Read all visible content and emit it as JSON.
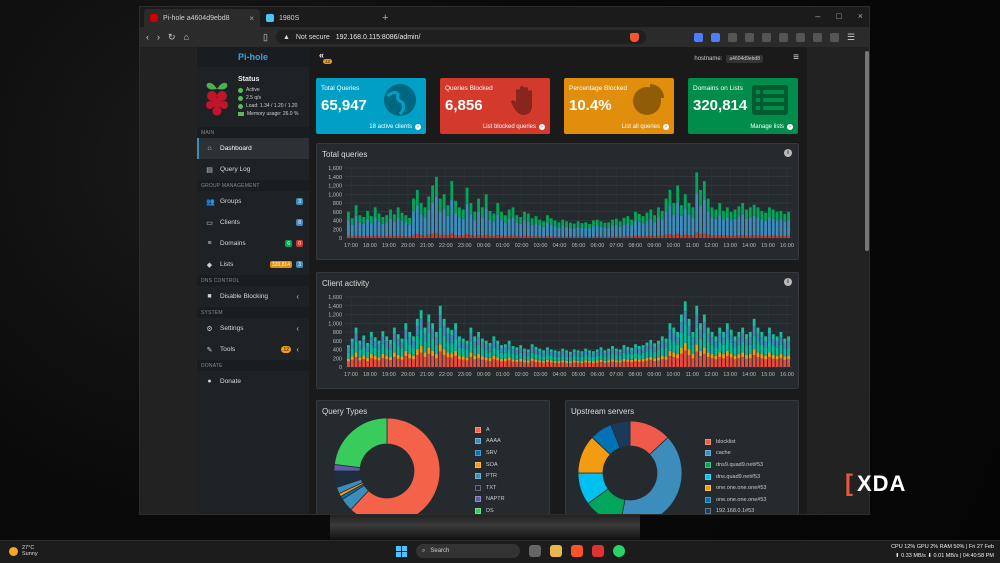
{
  "browser": {
    "tabs": [
      {
        "label": "Pi-hole a4604d9ebd8",
        "active": true
      },
      {
        "label": "1980S",
        "active": false
      }
    ],
    "address": {
      "security": "Not secure",
      "url": "192.168.0.115:8086/admin/"
    }
  },
  "app": {
    "logo": "Pi-hole",
    "status": {
      "title": "Status",
      "lines": [
        "Active",
        "2.5 q/s",
        "Load: 1.34 / 1.20 / 1.20",
        "Memory usage: 26.0 %"
      ]
    },
    "nav": {
      "main_header": "MAIN",
      "dashboard": "Dashboard",
      "query_log": "Query Log",
      "group_header": "GROUP MANAGEMENT",
      "groups": "Groups",
      "groups_badge": "3",
      "clients": "Clients",
      "clients_badge": "8",
      "domains": "Domains",
      "domains_badge_a": "6",
      "domains_badge_b": "0",
      "lists": "Lists",
      "lists_badge_a": "320,814",
      "lists_badge_b": "3",
      "dns_header": "DNS CONTROL",
      "disable_blocking": "Disable Blocking",
      "system_header": "SYSTEM",
      "settings": "Settings",
      "tools": "Tools",
      "tools_badge": "12",
      "donate_header": "DONATE",
      "donate": "Donate"
    },
    "topbar": {
      "collapse_badge": "12",
      "hostname_label": "hostname:",
      "hostname_value": "a4604d9ebd8"
    }
  },
  "stats": [
    {
      "title": "Total Queries",
      "value": "65,947",
      "footer": "18 active clients",
      "color": "#00a0c6"
    },
    {
      "title": "Queries Blocked",
      "value": "6,856",
      "footer": "List blocked queries",
      "color": "#d33a2c"
    },
    {
      "title": "Percentage Blocked",
      "value": "10.4%",
      "footer": "List all queries",
      "color": "#e08e0b"
    },
    {
      "title": "Domains on Lists",
      "value": "320,814",
      "footer": "Manage lists",
      "color": "#008d4c"
    }
  ],
  "panels": {
    "total_queries": "Total queries",
    "client_activity": "Client activity",
    "query_types": "Query Types",
    "upstream_servers": "Upstream servers"
  },
  "chart_data": [
    {
      "type": "bar",
      "title": "Total queries",
      "stacked": true,
      "ylim": [
        0,
        1600
      ],
      "yticks": [
        "0",
        "200",
        "400",
        "600",
        "800",
        "1,000",
        "1,200",
        "1,400",
        "1,600"
      ],
      "xticks": [
        "17:00",
        "18:00",
        "19:00",
        "20:00",
        "21:00",
        "22:00",
        "23:00",
        "00:00",
        "01:00",
        "02:00",
        "03:00",
        "04:00",
        "05:00",
        "06:00",
        "07:00",
        "08:00",
        "09:00",
        "10:00",
        "11:00",
        "12:00",
        "13:00",
        "14:00",
        "15:00",
        "16:00"
      ],
      "series_colors": [
        "#d33a2c",
        "#3c8dbc",
        "#00a65a"
      ],
      "values": [
        600,
        450,
        750,
        520,
        480,
        620,
        500,
        700,
        560,
        480,
        520,
        650,
        540,
        700,
        580,
        520,
        460,
        900,
        1100,
        800,
        700,
        950,
        1200,
        1400,
        900,
        1000,
        750,
        1300,
        850,
        700,
        650,
        1150,
        800,
        600,
        900,
        700,
        1000,
        620,
        560,
        800,
        600,
        520,
        650,
        700,
        520,
        480,
        600,
        560,
        450,
        500,
        420,
        380,
        520,
        450,
        400,
        360,
        420,
        380,
        350,
        330,
        380,
        340,
        360,
        320,
        400,
        420,
        380,
        350,
        360,
        420,
        440,
        380,
        460,
        500,
        420,
        600,
        550,
        500,
        580,
        650,
        520,
        700,
        620,
        900,
        1100,
        800,
        1200,
        750,
        1000,
        800,
        700,
        1500,
        1100,
        1300,
        900,
        700,
        650,
        800,
        620,
        700,
        600,
        650,
        720,
        800,
        650,
        700,
        760,
        700,
        620,
        580,
        700,
        650,
        600,
        620,
        550,
        600
      ]
    },
    {
      "type": "bar",
      "title": "Client activity",
      "stacked": true,
      "ylim": [
        0,
        1600
      ],
      "yticks": [
        "0",
        "200",
        "400",
        "600",
        "800",
        "1,000",
        "1,200",
        "1,400",
        "1,600"
      ],
      "xticks": [
        "17:00",
        "18:00",
        "19:00",
        "20:00",
        "21:00",
        "22:00",
        "23:00",
        "00:00",
        "01:00",
        "02:00",
        "03:00",
        "04:00",
        "05:00",
        "06:00",
        "07:00",
        "08:00",
        "09:00",
        "10:00",
        "11:00",
        "12:00",
        "13:00",
        "14:00",
        "15:00",
        "16:00"
      ],
      "series_colors": [
        "#e74c3c",
        "#f39c12",
        "#00c0a0",
        "#3c8dbc",
        "#1abc9c"
      ],
      "values": [
        500,
        650,
        900,
        600,
        720,
        550,
        800,
        680,
        600,
        820,
        700,
        620,
        900,
        750,
        650,
        1000,
        800,
        700,
        1100,
        1300,
        900,
        1200,
        1000,
        800,
        1400,
        1100,
        900,
        850,
        1000,
        700,
        650,
        600,
        900,
        700,
        800,
        650,
        600,
        550,
        700,
        600,
        500,
        520,
        600,
        480,
        450,
        500,
        420,
        400,
        520,
        460,
        420,
        380,
        450,
        400,
        380,
        360,
        420,
        380,
        350,
        400,
        380,
        360,
        420,
        380,
        360,
        400,
        450,
        380,
        420,
        480,
        420,
        400,
        500,
        460,
        440,
        520,
        480,
        500,
        560,
        620,
        540,
        600,
        700,
        650,
        1000,
        900,
        800,
        1200,
        1500,
        1100,
        800,
        1400,
        1000,
        1200,
        900,
        800,
        700,
        900,
        800,
        1000,
        850,
        700,
        800,
        900,
        750,
        800,
        1100,
        900,
        800,
        700,
        900,
        750,
        700,
        800,
        650,
        700
      ]
    },
    {
      "type": "pie",
      "title": "Query Types",
      "labels": [
        "A",
        "AAAA",
        "SRV",
        "SOA",
        "PTR",
        "TXT",
        "NAPTR",
        "DS"
      ],
      "values": [
        62,
        4,
        1,
        1,
        2,
        5,
        2,
        23
      ],
      "colors": [
        "#f5624a",
        "#3c8dbc",
        "#0073b7",
        "#f39c12",
        "#3c8dbc",
        "#1f2d3d",
        "#605ca8",
        "#39cc5c"
      ]
    },
    {
      "type": "pie",
      "title": "Upstream servers",
      "labels": [
        "blocklist",
        "cache",
        "dns9.quad9.net#53",
        "dns.quad9.net#53",
        "one.one.one.one#53",
        "one.one.one.one#53",
        "192.168.0.1#53"
      ],
      "values": [
        13,
        40,
        12,
        10,
        12,
        7,
        6
      ],
      "colors": [
        "#f05a4a",
        "#3c8dbc",
        "#00a65a",
        "#00c0ef",
        "#f39c12",
        "#0073b7",
        "#1a3a5c"
      ]
    }
  ],
  "watermark": "XDA",
  "taskbar": {
    "weather_temp": "27°C",
    "weather_desc": "Sunny",
    "search": "Search",
    "tray_line1": "CPU 12% GPU   2% RAM 50% | Fri 27 Feb",
    "tray_line2": "⬆ 0.33 MB/s ⬇ 0.01 MB/s | 04:40:58 PM"
  }
}
